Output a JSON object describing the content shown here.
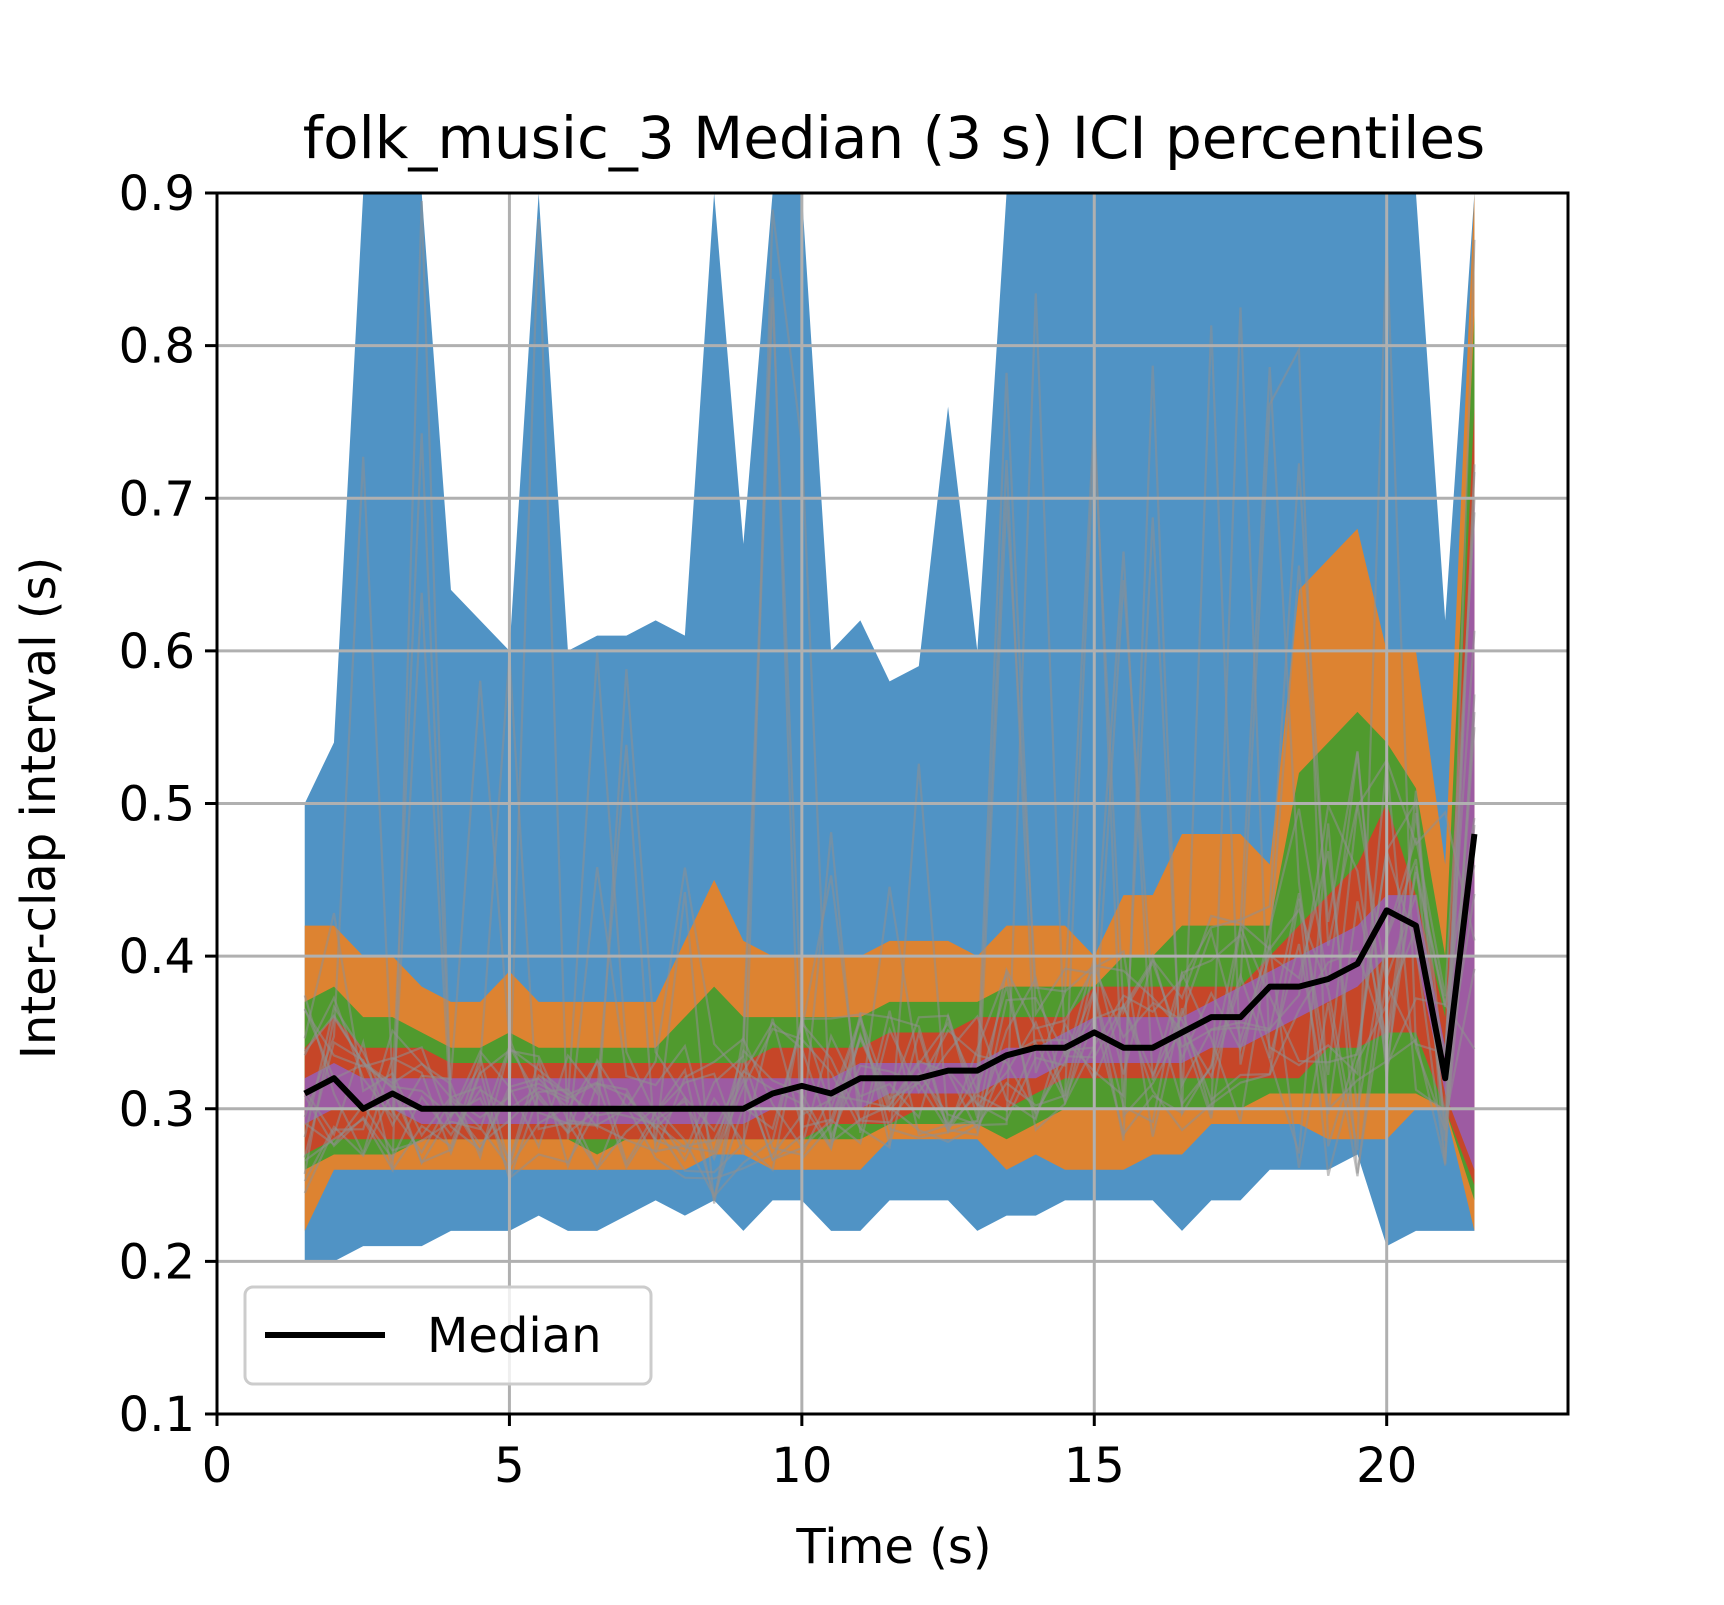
{
  "chart_data": {
    "type": "area",
    "title": "folk_music_3 Median (3 s) ICI percentiles",
    "xlabel": "Time (s)",
    "ylabel": "Inter-clap interval (s)",
    "xlim": [
      0,
      23.1
    ],
    "ylim": [
      0.1,
      0.9
    ],
    "xticks": [
      0,
      5,
      10,
      15,
      20
    ],
    "xtick_labels": [
      "0",
      "5",
      "10",
      "15",
      "20"
    ],
    "yticks": [
      0.1,
      0.2,
      0.3,
      0.4,
      0.5,
      0.6,
      0.7,
      0.8,
      0.9
    ],
    "ytick_labels": [
      "0.1",
      "0.2",
      "0.3",
      "0.4",
      "0.5",
      "0.6",
      "0.7",
      "0.8",
      "0.9"
    ],
    "grid": true,
    "legend": {
      "position": "lower-left",
      "entries": [
        "Median"
      ]
    },
    "colors": {
      "band_0_100": "#4c91c4",
      "band_10_90": "#e0832e",
      "band_20_80": "#4c9a2e",
      "band_30_70": "#c94428",
      "band_40_60": "#9c5ca5",
      "median": "#000000",
      "individual": "#8f8f8f",
      "grid": "#b0b0b0"
    },
    "x": [
      1.5,
      2.0,
      2.5,
      3.0,
      3.5,
      4.0,
      4.5,
      5.0,
      5.5,
      6.0,
      6.5,
      7.0,
      7.5,
      8.0,
      8.5,
      9.0,
      9.5,
      10.0,
      10.5,
      11.0,
      11.5,
      12.0,
      12.5,
      13.0,
      13.5,
      14.0,
      14.5,
      15.0,
      15.5,
      16.0,
      16.5,
      17.0,
      17.5,
      18.0,
      18.5,
      19.0,
      19.5,
      20.0,
      20.5,
      21.0,
      21.5
    ],
    "bands": [
      {
        "name": "0-100",
        "lower": [
          0.2,
          0.2,
          0.21,
          0.21,
          0.21,
          0.22,
          0.22,
          0.22,
          0.23,
          0.22,
          0.22,
          0.23,
          0.24,
          0.23,
          0.24,
          0.22,
          0.24,
          0.24,
          0.22,
          0.22,
          0.24,
          0.24,
          0.24,
          0.22,
          0.23,
          0.23,
          0.24,
          0.24,
          0.24,
          0.24,
          0.22,
          0.24,
          0.24,
          0.26,
          0.26,
          0.26,
          0.27,
          0.21,
          0.22,
          0.22,
          0.22
        ],
        "upper": [
          0.5,
          0.54,
          0.9,
          0.9,
          0.9,
          0.64,
          0.62,
          0.6,
          0.9,
          0.6,
          0.61,
          0.61,
          0.62,
          0.61,
          0.9,
          0.67,
          0.9,
          0.9,
          0.6,
          0.62,
          0.58,
          0.59,
          0.76,
          0.6,
          0.9,
          0.9,
          0.9,
          0.9,
          0.9,
          0.9,
          0.9,
          0.9,
          0.9,
          0.9,
          0.9,
          0.9,
          0.9,
          0.9,
          0.9,
          0.62,
          0.9
        ]
      },
      {
        "name": "10-90",
        "lower": [
          0.22,
          0.26,
          0.26,
          0.26,
          0.26,
          0.26,
          0.26,
          0.26,
          0.26,
          0.26,
          0.26,
          0.26,
          0.26,
          0.26,
          0.27,
          0.27,
          0.26,
          0.26,
          0.26,
          0.26,
          0.28,
          0.28,
          0.28,
          0.28,
          0.26,
          0.27,
          0.26,
          0.26,
          0.26,
          0.27,
          0.27,
          0.29,
          0.29,
          0.29,
          0.29,
          0.28,
          0.28,
          0.28,
          0.3,
          0.3,
          0.22
        ]
      },
      {
        "name": "20-80",
        "lower": [
          0.26,
          0.27,
          0.27,
          0.27,
          0.28,
          0.28,
          0.28,
          0.28,
          0.28,
          0.28,
          0.27,
          0.28,
          0.28,
          0.28,
          0.28,
          0.28,
          0.28,
          0.28,
          0.28,
          0.28,
          0.29,
          0.29,
          0.29,
          0.29,
          0.28,
          0.29,
          0.3,
          0.3,
          0.3,
          0.3,
          0.3,
          0.3,
          0.3,
          0.31,
          0.31,
          0.31,
          0.31,
          0.31,
          0.31,
          0.3,
          0.24
        ],
        "upper": [
          0.37,
          0.38,
          0.36,
          0.36,
          0.35,
          0.34,
          0.34,
          0.35,
          0.34,
          0.34,
          0.34,
          0.34,
          0.34,
          0.36,
          0.38,
          0.36,
          0.36,
          0.36,
          0.36,
          0.36,
          0.37,
          0.37,
          0.37,
          0.37,
          0.38,
          0.38,
          0.38,
          0.38,
          0.4,
          0.4,
          0.42,
          0.42,
          0.42,
          0.42,
          0.52,
          0.54,
          0.56,
          0.54,
          0.51,
          0.4,
          0.82
        ]
      },
      {
        "name": "30-70",
        "lower": [
          0.27,
          0.28,
          0.28,
          0.28,
          0.28,
          0.28,
          0.28,
          0.28,
          0.28,
          0.28,
          0.28,
          0.28,
          0.28,
          0.28,
          0.28,
          0.28,
          0.28,
          0.28,
          0.29,
          0.29,
          0.29,
          0.3,
          0.3,
          0.3,
          0.3,
          0.31,
          0.32,
          0.32,
          0.32,
          0.32,
          0.32,
          0.32,
          0.32,
          0.32,
          0.32,
          0.34,
          0.34,
          0.35,
          0.35,
          0.3,
          0.25
        ],
        "upper": [
          0.34,
          0.36,
          0.34,
          0.34,
          0.34,
          0.33,
          0.33,
          0.33,
          0.33,
          0.33,
          0.33,
          0.33,
          0.33,
          0.33,
          0.33,
          0.33,
          0.34,
          0.34,
          0.34,
          0.34,
          0.35,
          0.35,
          0.35,
          0.36,
          0.36,
          0.36,
          0.36,
          0.38,
          0.38,
          0.38,
          0.38,
          0.38,
          0.38,
          0.4,
          0.42,
          0.44,
          0.46,
          0.5,
          0.44,
          0.36,
          0.76
        ]
      },
      {
        "name": "40-60",
        "lower": [
          0.29,
          0.3,
          0.3,
          0.3,
          0.29,
          0.29,
          0.29,
          0.29,
          0.29,
          0.29,
          0.29,
          0.29,
          0.29,
          0.29,
          0.29,
          0.29,
          0.3,
          0.3,
          0.3,
          0.3,
          0.31,
          0.31,
          0.31,
          0.31,
          0.32,
          0.32,
          0.33,
          0.33,
          0.33,
          0.33,
          0.33,
          0.34,
          0.34,
          0.35,
          0.36,
          0.37,
          0.38,
          0.4,
          0.4,
          0.31,
          0.26
        ],
        "upper": [
          0.32,
          0.33,
          0.32,
          0.32,
          0.32,
          0.32,
          0.32,
          0.32,
          0.32,
          0.32,
          0.32,
          0.32,
          0.32,
          0.32,
          0.32,
          0.32,
          0.32,
          0.32,
          0.32,
          0.33,
          0.33,
          0.33,
          0.33,
          0.33,
          0.34,
          0.34,
          0.35,
          0.36,
          0.36,
          0.36,
          0.36,
          0.37,
          0.38,
          0.39,
          0.4,
          0.41,
          0.42,
          0.44,
          0.44,
          0.34,
          0.7
        ]
      }
    ],
    "series": [
      {
        "name": "Median",
        "values": [
          0.31,
          0.32,
          0.3,
          0.31,
          0.3,
          0.3,
          0.3,
          0.3,
          0.3,
          0.3,
          0.3,
          0.3,
          0.3,
          0.3,
          0.3,
          0.3,
          0.31,
          0.315,
          0.31,
          0.32,
          0.32,
          0.32,
          0.325,
          0.325,
          0.335,
          0.34,
          0.34,
          0.35,
          0.34,
          0.34,
          0.35,
          0.36,
          0.36,
          0.38,
          0.38,
          0.385,
          0.395,
          0.43,
          0.42,
          0.32,
          0.48
        ]
      }
    ]
  }
}
